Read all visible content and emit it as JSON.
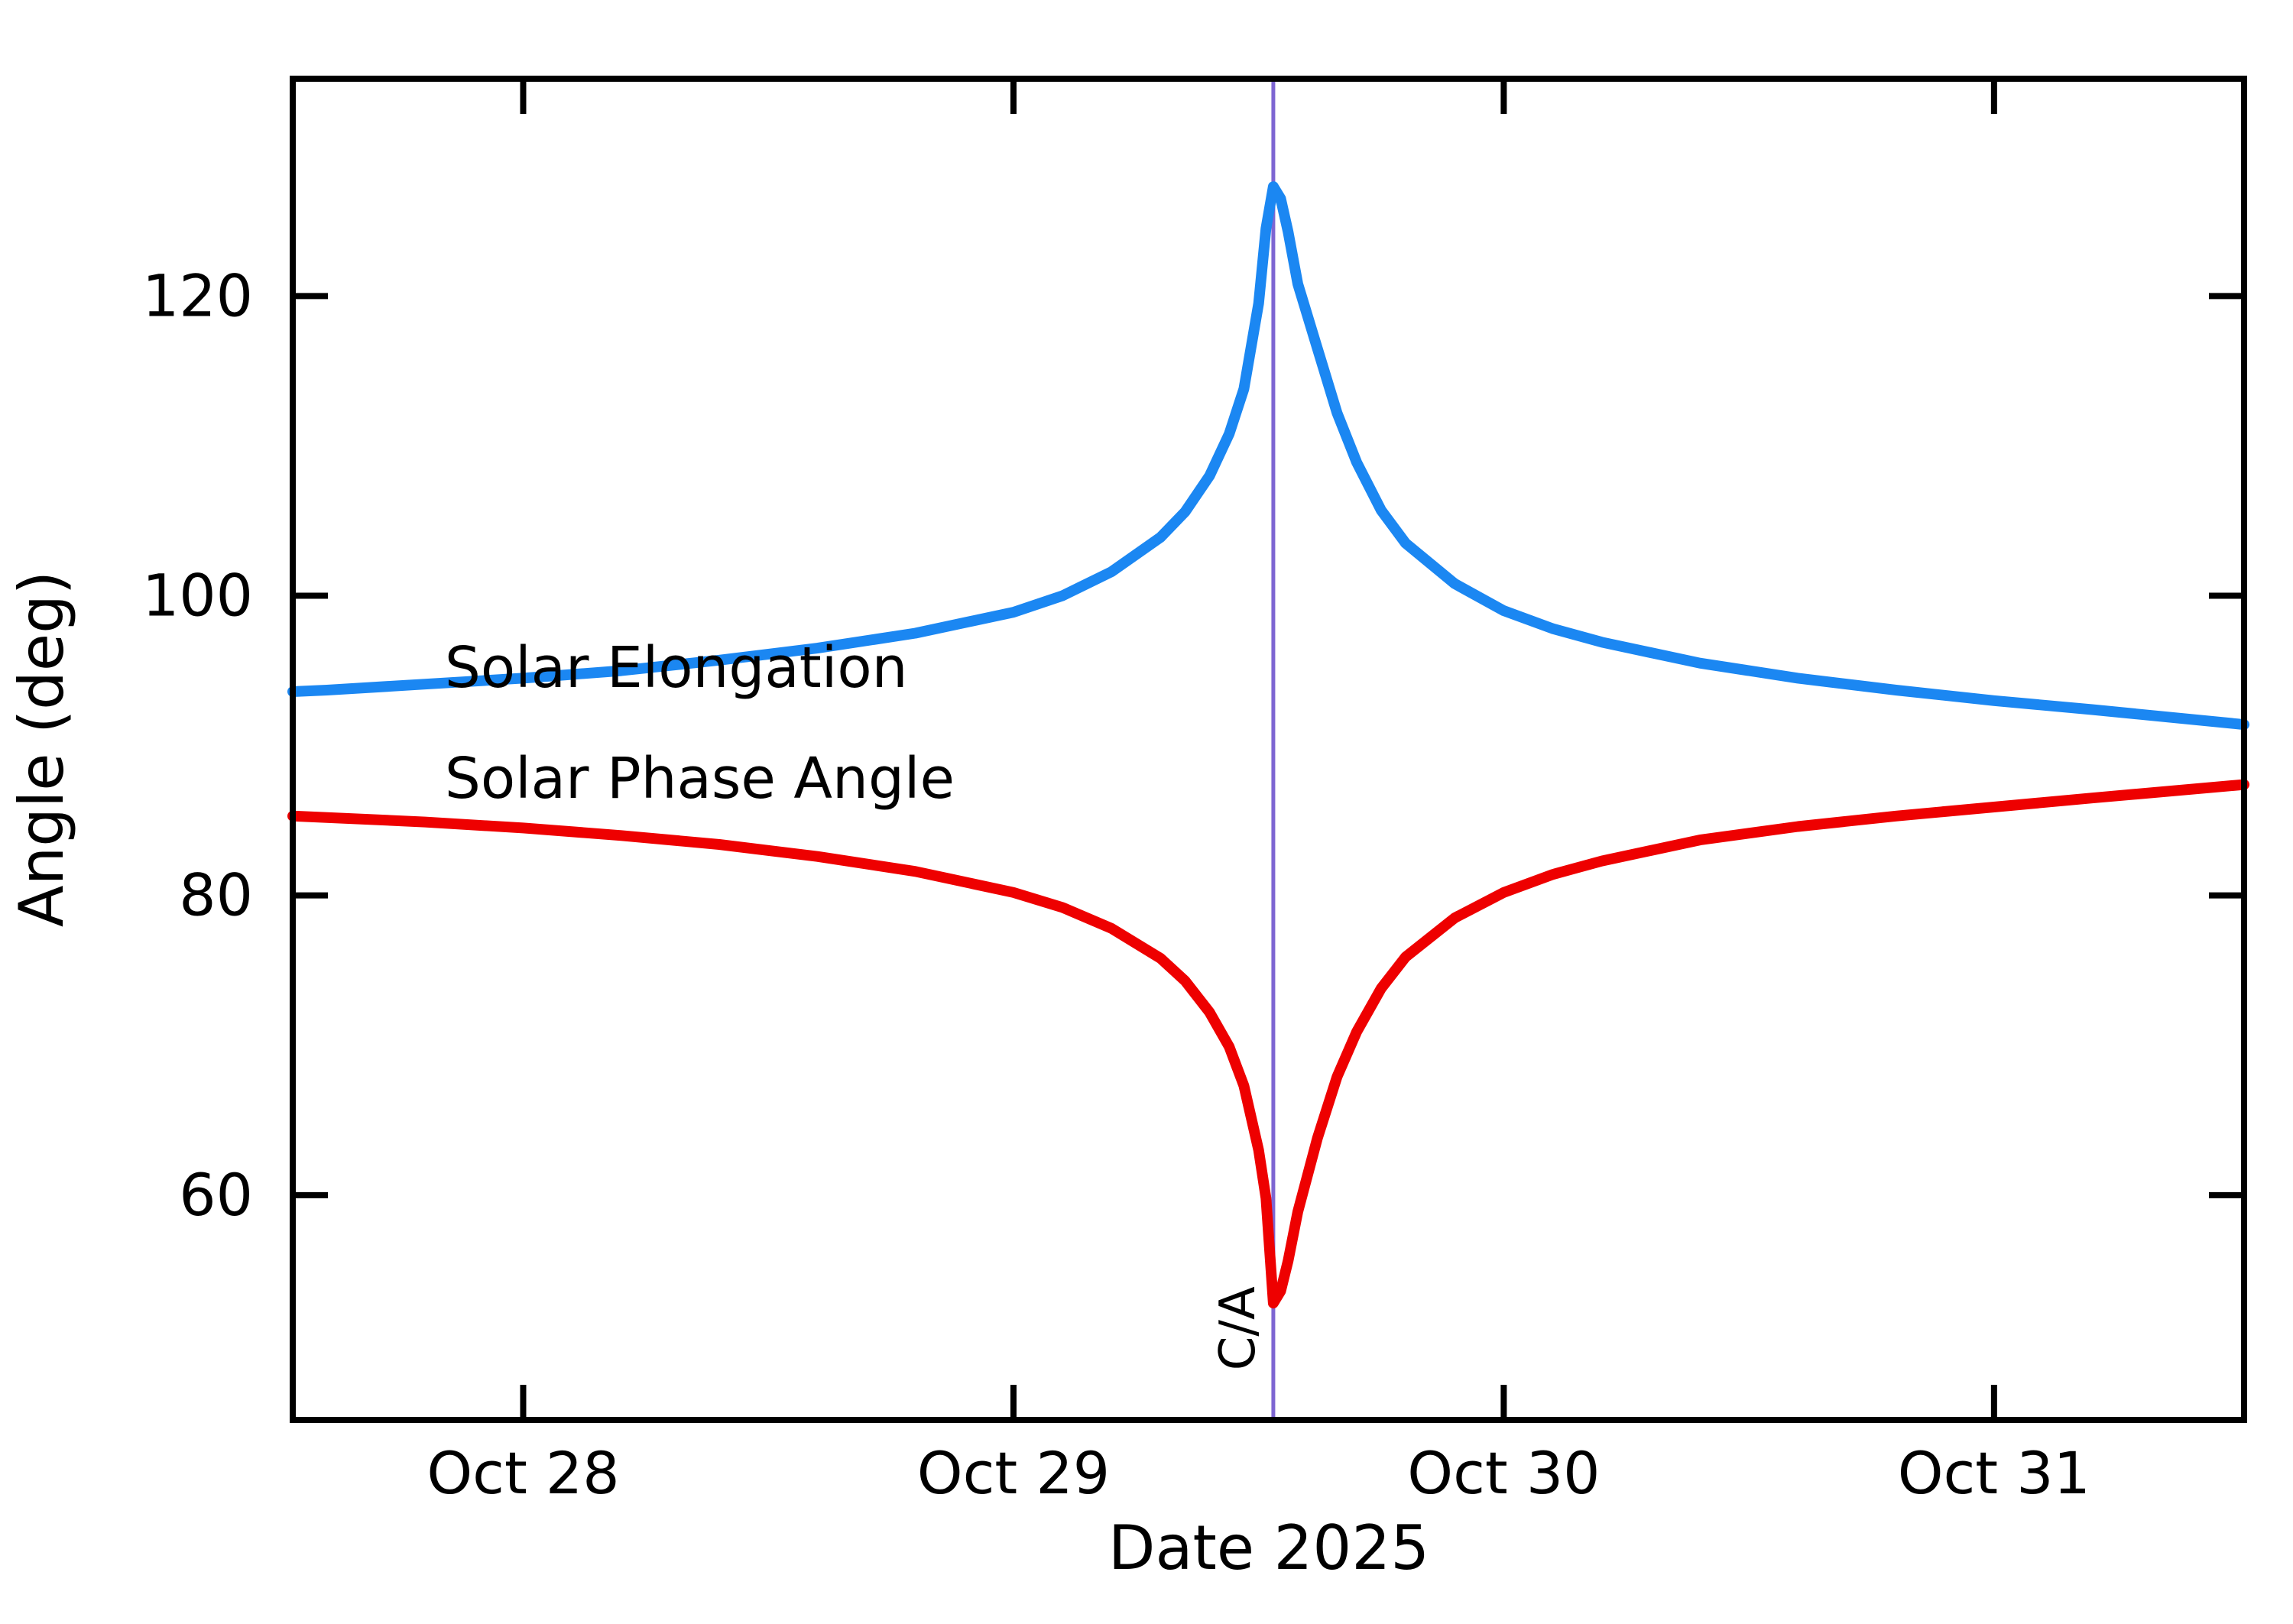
{
  "chart_data": {
    "type": "line",
    "title": "",
    "xlabel": "Date 2025",
    "ylabel": "Angle (deg)",
    "xlim": [
      27.53,
      31.51
    ],
    "ylim": [
      45,
      134.5
    ],
    "x_unit": "day of October 2025",
    "grid": false,
    "legend_position": "inline-labels",
    "x_ticks": [
      {
        "value": 28,
        "label": "Oct 28"
      },
      {
        "value": 29,
        "label": "Oct 29"
      },
      {
        "value": 30,
        "label": "Oct 30"
      },
      {
        "value": 31,
        "label": "Oct 31"
      }
    ],
    "y_ticks": [
      {
        "value": 60,
        "label": "60"
      },
      {
        "value": 80,
        "label": "80"
      },
      {
        "value": 100,
        "label": "100"
      },
      {
        "value": 120,
        "label": "120"
      }
    ],
    "x": [
      27.53,
      27.6,
      27.8,
      28.0,
      28.2,
      28.4,
      28.6,
      28.8,
      29.0,
      29.1,
      29.2,
      29.3,
      29.35,
      29.4,
      29.44,
      29.47,
      29.5,
      29.515,
      29.53,
      29.545,
      29.56,
      29.58,
      29.62,
      29.66,
      29.7,
      29.75,
      29.8,
      29.9,
      30.0,
      30.1,
      30.2,
      30.4,
      30.6,
      30.8,
      31.0,
      31.2,
      31.51
    ],
    "series": [
      {
        "name": "Solar Elongation",
        "color": "#1b87f2",
        "label_pos": {
          "x": 27.84,
          "y": 93.9
        },
        "values": [
          93.6,
          93.7,
          94.1,
          94.5,
          95.0,
          95.7,
          96.5,
          97.5,
          98.9,
          100.0,
          101.6,
          103.9,
          105.6,
          108.0,
          110.8,
          113.8,
          119.5,
          124.5,
          127.3,
          126.5,
          124.3,
          120.8,
          116.5,
          112.2,
          108.9,
          105.7,
          103.5,
          100.8,
          99.0,
          97.8,
          96.9,
          95.5,
          94.5,
          93.7,
          93.0,
          92.4,
          91.4
        ]
      },
      {
        "name": "Solar Phase Angle",
        "color": "#ee0000",
        "label_pos": {
          "x": 27.84,
          "y": 86.5
        },
        "values": [
          85.3,
          85.2,
          84.9,
          84.5,
          84.0,
          83.4,
          82.6,
          81.6,
          80.2,
          79.2,
          77.8,
          75.8,
          74.3,
          72.2,
          69.9,
          67.3,
          63.0,
          59.8,
          52.8,
          53.6,
          55.6,
          58.9,
          63.8,
          67.9,
          70.9,
          73.8,
          75.9,
          78.5,
          80.2,
          81.4,
          82.3,
          83.7,
          84.6,
          85.3,
          85.9,
          86.5,
          87.4
        ]
      }
    ],
    "annotation": {
      "label": "C/A",
      "x": 29.53,
      "label_value_y": 48.3,
      "line_color": "#7e66d2",
      "label_color": "#5b21cc"
    },
    "axis_color": "#000000"
  }
}
